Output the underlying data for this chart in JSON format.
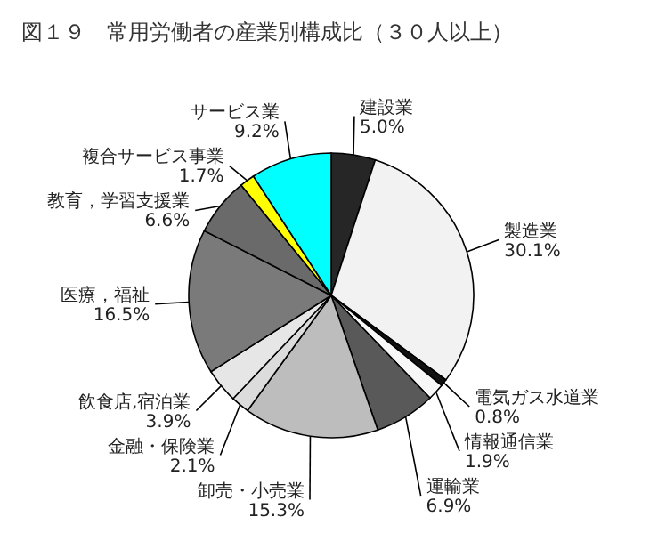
{
  "chart_data": {
    "type": "pie",
    "title": "図１９　常用労働者の産業別構成比（３０人以上）",
    "categories": [
      "建設業",
      "製造業",
      "電気ガス水道業",
      "情報通信業",
      "運輸業",
      "卸売・小売業",
      "金融・保険業",
      "飲食店,宿泊業",
      "医療，福祉",
      "教育，学習支援業",
      "複合サービス事業",
      "サービス業"
    ],
    "values": [
      5.0,
      30.1,
      0.8,
      1.9,
      6.9,
      15.3,
      2.1,
      3.9,
      16.5,
      6.6,
      1.7,
      9.2
    ],
    "value_labels": [
      "5.0%",
      "30.1%",
      "0.8%",
      "1.9%",
      "6.9%",
      "15.3%",
      "2.1%",
      "3.9%",
      "16.5%",
      "6.6%",
      "1.7%",
      "9.2%"
    ],
    "colors": [
      "#262626",
      "#f2f2f2",
      "#111111",
      "#f7f7f7",
      "#595959",
      "#bdbdbd",
      "#dcdcdc",
      "#e6e6e6",
      "#7a7a7a",
      "#6a6a6a",
      "#ffff00",
      "#00ffff"
    ],
    "legend": false
  }
}
